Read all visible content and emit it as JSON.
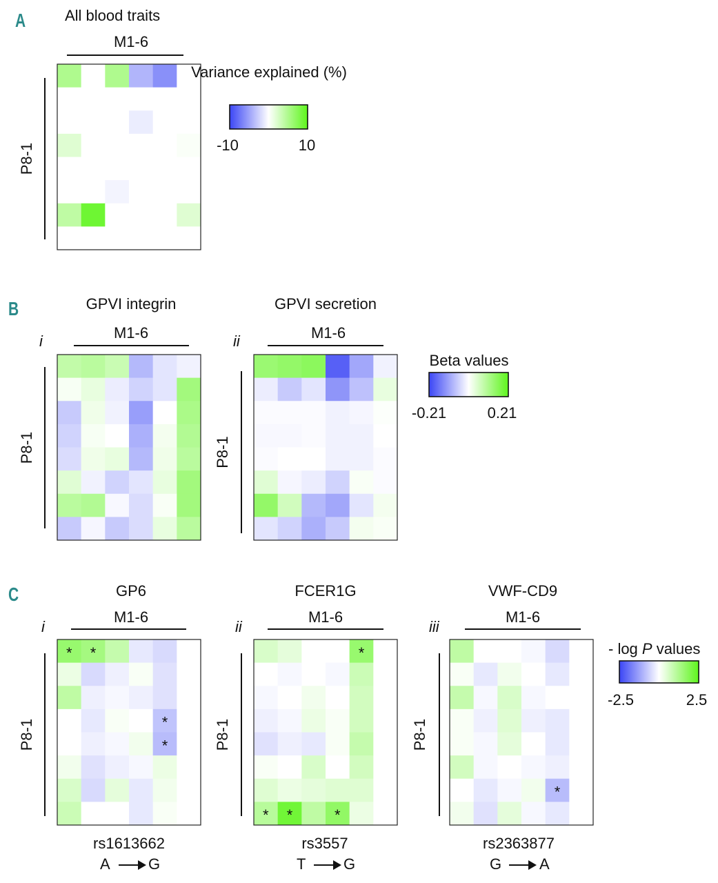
{
  "panels": {
    "A": {
      "label": "A",
      "title": "All blood traits",
      "col_label": "M1-6",
      "row_label": "P8-1",
      "legend": {
        "title_line1": "Variance explained (%)",
        "min_label": "-10",
        "max_label": "10"
      }
    },
    "B": {
      "label": "B",
      "i": {
        "roman": "i",
        "title": "GPVI integrin",
        "col_label": "M1-6",
        "row_label": "P8-1"
      },
      "ii": {
        "roman": "ii",
        "title": "GPVI secretion",
        "col_label": "M1-6",
        "row_label": "P8-1"
      },
      "legend": {
        "title": "Beta values",
        "min_label": "-0.21",
        "max_label": "0.21"
      }
    },
    "C": {
      "label": "C",
      "i": {
        "roman": "i",
        "title": "GP6",
        "col_label": "M1-6",
        "row_label": "P8-1",
        "snp": "rs1613662",
        "allele_from": "A",
        "allele_to": "G"
      },
      "ii": {
        "roman": "ii",
        "title": "FCER1G",
        "col_label": "M1-6",
        "row_label": "P8-1",
        "snp": "rs3557",
        "allele_from": "T",
        "allele_to": "G"
      },
      "iii": {
        "roman": "iii",
        "title": "VWF-CD9",
        "col_label": "M1-6",
        "row_label": "P8-1",
        "snp": "rs2363877",
        "allele_from": "G",
        "allele_to": "A"
      },
      "legend": {
        "title_prefix": "- log ",
        "title_italic": "P",
        "title_suffix": " values",
        "min_label": "-2.5",
        "max_label": "2.5"
      }
    }
  },
  "chart_data": [
    {
      "id": "A",
      "type": "heatmap",
      "title": "All blood traits",
      "xlabel": "M1-6",
      "ylabel": "P8-1",
      "scale_min": -10,
      "scale_max": 10,
      "values": [
        [
          5,
          0,
          5,
          -4,
          -6,
          0
        ],
        [
          0,
          0,
          0,
          0,
          0,
          0
        ],
        [
          0,
          0,
          0,
          -1,
          0,
          0
        ],
        [
          2,
          0,
          0,
          0,
          0,
          0.3
        ],
        [
          0,
          0,
          0,
          0,
          0,
          0
        ],
        [
          0,
          0,
          -0.6,
          0,
          0,
          0
        ],
        [
          4,
          9,
          0,
          0,
          0,
          2
        ],
        [
          0,
          0,
          0,
          0,
          0,
          0
        ]
      ]
    },
    {
      "id": "B-i",
      "type": "heatmap",
      "title": "GPVI integrin",
      "xlabel": "M1-6",
      "ylabel": "P8-1",
      "scale_min": -0.21,
      "scale_max": 0.21,
      "values": [
        [
          0.08,
          0.09,
          0.07,
          -0.08,
          -0.03,
          -0.015
        ],
        [
          0.01,
          0.03,
          -0.02,
          -0.05,
          -0.03,
          0.12
        ],
        [
          -0.06,
          0.02,
          -0.015,
          -0.11,
          0.0,
          0.11
        ],
        [
          -0.05,
          0.01,
          0.0,
          -0.09,
          0.015,
          0.1
        ],
        [
          -0.04,
          0.02,
          0.03,
          -0.08,
          0.02,
          0.09
        ],
        [
          0.04,
          -0.015,
          -0.05,
          -0.03,
          0.03,
          0.12
        ],
        [
          0.09,
          0.1,
          -0.008,
          -0.04,
          0.008,
          0.12
        ],
        [
          -0.06,
          -0.01,
          -0.06,
          -0.04,
          0.03,
          0.09
        ]
      ]
    },
    {
      "id": "B-ii",
      "type": "heatmap",
      "title": "GPVI secretion",
      "xlabel": "M1-6",
      "ylabel": "P8-1",
      "scale_min": -0.21,
      "scale_max": 0.21,
      "values": [
        [
          0.13,
          0.14,
          0.15,
          -0.18,
          -0.1,
          -0.015
        ],
        [
          -0.02,
          -0.06,
          -0.03,
          -0.12,
          -0.07,
          0.03
        ],
        [
          -0.004,
          -0.004,
          -0.004,
          -0.015,
          -0.01,
          0.004
        ],
        [
          -0.008,
          -0.008,
          -0.004,
          -0.015,
          -0.015,
          0.0
        ],
        [
          -0.004,
          0.0,
          0.0,
          -0.015,
          -0.015,
          -0.004
        ],
        [
          0.04,
          -0.01,
          -0.02,
          -0.05,
          0.008,
          -0.004
        ],
        [
          0.14,
          0.06,
          -0.08,
          -0.1,
          -0.03,
          0.015
        ],
        [
          -0.03,
          -0.05,
          -0.09,
          -0.06,
          0.015,
          0.008
        ]
      ]
    },
    {
      "id": "C-i",
      "type": "heatmap",
      "title": "GP6",
      "snp": "rs1613662",
      "xlabel": "M1-6",
      "ylabel": "P8-1",
      "scale_min": -2.5,
      "scale_max": 2.5,
      "values": [
        [
          1.6,
          1.4,
          0.9,
          -0.3,
          -0.5,
          0.0
        ],
        [
          0.3,
          -0.5,
          -0.2,
          0.1,
          -0.4,
          0.0
        ],
        [
          1.0,
          -0.2,
          -0.1,
          -0.2,
          -0.4,
          0.0
        ],
        [
          0.0,
          -0.3,
          0.1,
          0.0,
          -0.8,
          0.0
        ],
        [
          0.0,
          -0.2,
          -0.1,
          0.2,
          -0.9,
          0.0
        ],
        [
          0.2,
          -0.4,
          -0.2,
          -0.1,
          0.3,
          0.0
        ],
        [
          0.6,
          -0.5,
          0.4,
          -0.3,
          0.2,
          0.0
        ],
        [
          0.8,
          0.0,
          0.0,
          -0.3,
          0.1,
          0.0
        ]
      ],
      "significant": [
        [
          0,
          0
        ],
        [
          0,
          1
        ],
        [
          3,
          4
        ],
        [
          4,
          4
        ]
      ]
    },
    {
      "id": "C-ii",
      "type": "heatmap",
      "title": "FCER1G",
      "snp": "rs3557",
      "xlabel": "M1-6",
      "ylabel": "P8-1",
      "scale_min": -2.5,
      "scale_max": 2.5,
      "values": [
        [
          0.6,
          0.4,
          0.0,
          0.0,
          1.6,
          0.0
        ],
        [
          0.0,
          -0.1,
          0.0,
          -0.1,
          0.8,
          0.0
        ],
        [
          -0.1,
          0.0,
          0.2,
          0.0,
          0.7,
          0.0
        ],
        [
          -0.2,
          -0.1,
          0.3,
          0.1,
          0.7,
          0.0
        ],
        [
          -0.4,
          -0.2,
          -0.3,
          0.1,
          0.9,
          0.0
        ],
        [
          0.1,
          0.0,
          0.6,
          0.0,
          0.7,
          0.0
        ],
        [
          0.5,
          0.3,
          0.4,
          0.5,
          0.5,
          0.0
        ],
        [
          1.1,
          2.2,
          1.0,
          1.7,
          0.3,
          0.0
        ]
      ],
      "significant": [
        [
          0,
          4
        ],
        [
          7,
          0
        ],
        [
          7,
          1
        ],
        [
          7,
          3
        ]
      ]
    },
    {
      "id": "C-iii",
      "type": "heatmap",
      "title": "VWF-CD9",
      "snp": "rs2363877",
      "xlabel": "M1-6",
      "ylabel": "P8-1",
      "scale_min": -2.5,
      "scale_max": 2.5,
      "values": [
        [
          1.0,
          0.0,
          0.0,
          -0.1,
          -0.5,
          0.0
        ],
        [
          0.1,
          -0.3,
          0.2,
          0.0,
          -0.3,
          0.0
        ],
        [
          0.9,
          -0.1,
          0.6,
          -0.1,
          0.0,
          0.0
        ],
        [
          0.1,
          -0.2,
          0.5,
          -0.2,
          -0.3,
          0.0
        ],
        [
          0.1,
          -0.1,
          0.4,
          0.0,
          -0.3,
          0.0
        ],
        [
          0.7,
          -0.1,
          0.0,
          -0.1,
          -0.2,
          0.0
        ],
        [
          0.0,
          -0.3,
          -0.1,
          0.2,
          -0.9,
          0.0
        ],
        [
          0.2,
          -0.4,
          0.4,
          -0.1,
          -0.3,
          0.0
        ]
      ],
      "significant": [
        [
          6,
          4
        ]
      ]
    }
  ],
  "colors": {
    "negative": "#3b46f5",
    "neutral": "#ffffff",
    "positive": "#5ef51c",
    "significance_marker": "#111111"
  }
}
